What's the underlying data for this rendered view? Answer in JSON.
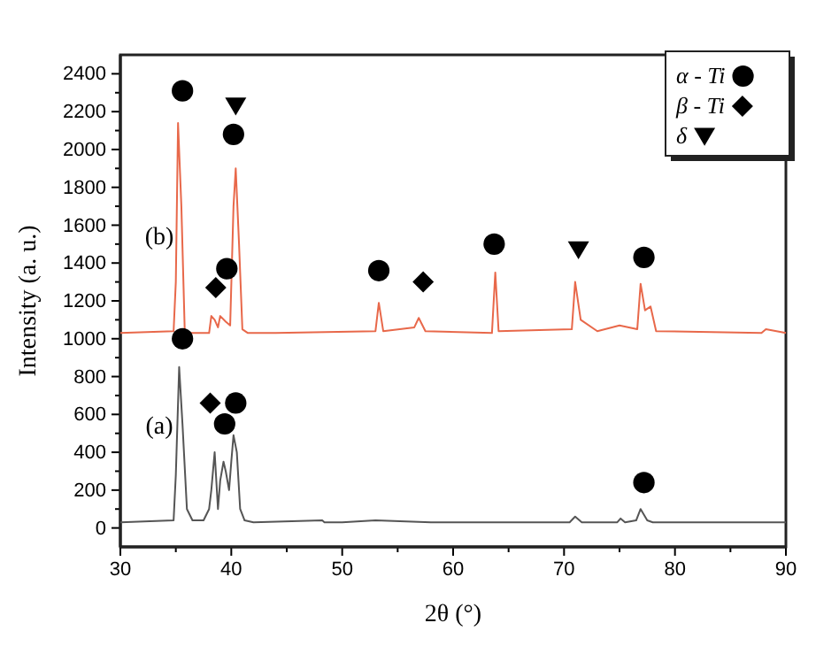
{
  "chart_data": {
    "type": "line",
    "xlabel": "2θ (°)",
    "ylabel": "Intensity (a. u.)",
    "xlim": [
      30,
      90
    ],
    "ylim": [
      -100,
      2500
    ],
    "xticks": [
      30,
      {
        "value": 35,
        "label": null
      },
      40,
      {
        "value": 45,
        "label": null
      },
      50,
      {
        "value": 55,
        "label": null
      },
      60,
      {
        "value": 65,
        "label": null
      },
      70,
      {
        "value": 75,
        "label": null
      },
      80,
      {
        "value": 85,
        "label": null
      },
      90
    ],
    "yticks": [
      0,
      {
        "value": 100,
        "label": null
      },
      200,
      {
        "value": 300,
        "label": null
      },
      400,
      {
        "value": 500,
        "label": null
      },
      600,
      {
        "value": 700,
        "label": null
      },
      800,
      {
        "value": 900,
        "label": null
      },
      1000,
      {
        "value": 1100,
        "label": null
      },
      1200,
      {
        "value": 1300,
        "label": null
      },
      1400,
      {
        "value": 1500,
        "label": null
      },
      1600,
      {
        "value": 1700,
        "label": null
      },
      1800,
      {
        "value": 1900,
        "label": null
      },
      2000,
      {
        "value": 2100,
        "label": null
      },
      2200,
      {
        "value": 2300,
        "label": null
      },
      2400
    ],
    "legend": "top right",
    "series": [
      {
        "name": "(a)",
        "color": "#555555",
        "x": [
          30,
          34.8,
          35.0,
          35.3,
          35.6,
          36.0,
          36.5,
          37.5,
          38.0,
          38.2,
          38.5,
          38.8,
          39.0,
          39.3,
          39.5,
          39.8,
          40.0,
          40.2,
          40.5,
          40.8,
          41.2,
          42,
          48.2,
          48.4,
          50,
          53,
          58,
          70.5,
          71,
          71.6,
          74.8,
          75.1,
          75.5,
          76.5,
          76.9,
          77.5,
          78,
          90
        ],
        "values": [
          30,
          40,
          280,
          850,
          550,
          100,
          40,
          40,
          100,
          200,
          400,
          100,
          250,
          350,
          300,
          200,
          350,
          490,
          400,
          100,
          40,
          30,
          40,
          30,
          30,
          40,
          30,
          30,
          60,
          30,
          30,
          50,
          30,
          40,
          100,
          40,
          30,
          30
        ]
      },
      {
        "name": "(b)",
        "color": "#e8684a",
        "x": [
          30,
          34.8,
          35.0,
          35.2,
          35.5,
          35.8,
          36.2,
          38.0,
          38.2,
          38.5,
          38.8,
          39.0,
          39.5,
          39.9,
          40.2,
          40.4,
          40.7,
          41.0,
          41.5,
          44,
          53,
          53.3,
          53.7,
          56.5,
          56.9,
          57.5,
          63.5,
          63.8,
          64.1,
          70.7,
          71,
          71.5,
          73,
          75,
          76.6,
          76.9,
          77.3,
          77.8,
          78.3,
          87.8,
          88.2,
          90
        ],
        "values": [
          1030,
          1040,
          1300,
          2140,
          1700,
          1050,
          1030,
          1030,
          1120,
          1100,
          1060,
          1120,
          1090,
          1070,
          1700,
          1900,
          1500,
          1050,
          1030,
          1030,
          1040,
          1190,
          1040,
          1060,
          1110,
          1040,
          1030,
          1350,
          1040,
          1050,
          1300,
          1100,
          1040,
          1070,
          1050,
          1290,
          1150,
          1170,
          1040,
          1030,
          1050,
          1030
        ]
      },
      {
        "type": "scatter",
        "name": "α - Ti",
        "marker": "circle",
        "color": "#000000",
        "x": [
          35.6,
          40.2,
          39.6,
          53.3,
          63.7,
          77.2,
          35.6,
          40.4,
          39.4,
          77.2
        ],
        "values": [
          2310,
          2080,
          1370,
          1360,
          1500,
          1430,
          1000,
          660,
          550,
          240
        ]
      },
      {
        "type": "scatter",
        "name": "β - Ti",
        "marker": "diamond",
        "color": "#000000",
        "x": [
          38.6,
          57.3,
          38.1
        ],
        "values": [
          1270,
          1300,
          660
        ]
      },
      {
        "type": "scatter",
        "name": "δ",
        "marker": "triangle",
        "color": "#000000",
        "x": [
          40.4,
          71.3
        ],
        "values": [
          2230,
          1470
        ]
      }
    ]
  }
}
